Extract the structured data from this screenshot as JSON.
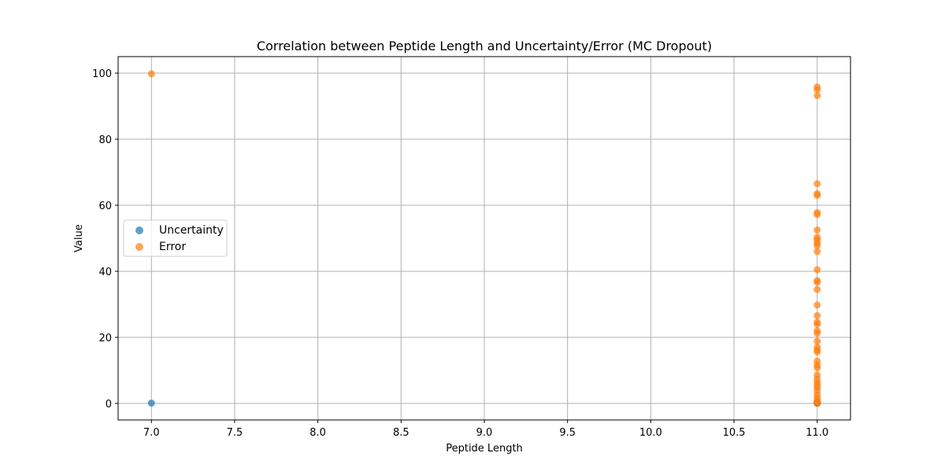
{
  "chart_data": {
    "type": "scatter",
    "title": "Correlation between Peptide Length and Uncertainty/Error (MC Dropout)",
    "xlabel": "Peptide Length",
    "ylabel": "Value",
    "xlim": [
      6.8,
      11.2
    ],
    "ylim": [
      -5,
      105
    ],
    "xticks": [
      "7.0",
      "7.5",
      "8.0",
      "8.5",
      "9.0",
      "9.5",
      "10.0",
      "10.5",
      "11.0"
    ],
    "xtick_values": [
      7.0,
      7.5,
      8.0,
      8.5,
      9.0,
      9.5,
      10.0,
      10.5,
      11.0
    ],
    "yticks": [
      "0",
      "20",
      "40",
      "60",
      "80",
      "100"
    ],
    "ytick_values": [
      0,
      20,
      40,
      60,
      80,
      100
    ],
    "grid": true,
    "legend_position": "center-left",
    "series": [
      {
        "name": "Uncertainty",
        "color": "#1f77b4",
        "points": [
          [
            7,
            0.1
          ],
          [
            11,
            0.1
          ],
          [
            11,
            0.2
          ],
          [
            11,
            0.1
          ],
          [
            11,
            0.3
          ]
        ]
      },
      {
        "name": "Error",
        "color": "#ff7f0e",
        "points": [
          [
            7,
            99.8
          ],
          [
            11,
            95.8
          ],
          [
            11,
            95.0
          ],
          [
            11,
            93.2
          ],
          [
            11,
            66.5
          ],
          [
            11,
            63.5
          ],
          [
            11,
            63.0
          ],
          [
            11,
            57.8
          ],
          [
            11,
            57.2
          ],
          [
            11,
            52.5
          ],
          [
            11,
            50.3
          ],
          [
            11,
            49.5
          ],
          [
            11,
            48.5
          ],
          [
            11,
            47.8
          ],
          [
            11,
            46.0
          ],
          [
            11,
            40.5
          ],
          [
            11,
            37.2
          ],
          [
            11,
            36.7
          ],
          [
            11,
            34.5
          ],
          [
            11,
            29.8
          ],
          [
            11,
            26.6
          ],
          [
            11,
            24.6
          ],
          [
            11,
            24.0
          ],
          [
            11,
            22.0
          ],
          [
            11,
            21.2
          ],
          [
            11,
            18.8
          ],
          [
            11,
            17.0
          ],
          [
            11,
            16.2
          ],
          [
            11,
            15.6
          ],
          [
            11,
            12.8
          ],
          [
            11,
            11.6
          ],
          [
            11,
            10.8
          ],
          [
            11,
            8.6
          ],
          [
            11,
            7.4
          ],
          [
            11,
            6.4
          ],
          [
            11,
            5.6
          ],
          [
            11,
            4.8
          ],
          [
            11,
            3.8
          ],
          [
            11,
            2.6
          ],
          [
            11,
            1.6
          ],
          [
            11,
            0.8
          ],
          [
            11,
            0.3
          ],
          [
            11,
            0.0
          ]
        ]
      }
    ]
  }
}
